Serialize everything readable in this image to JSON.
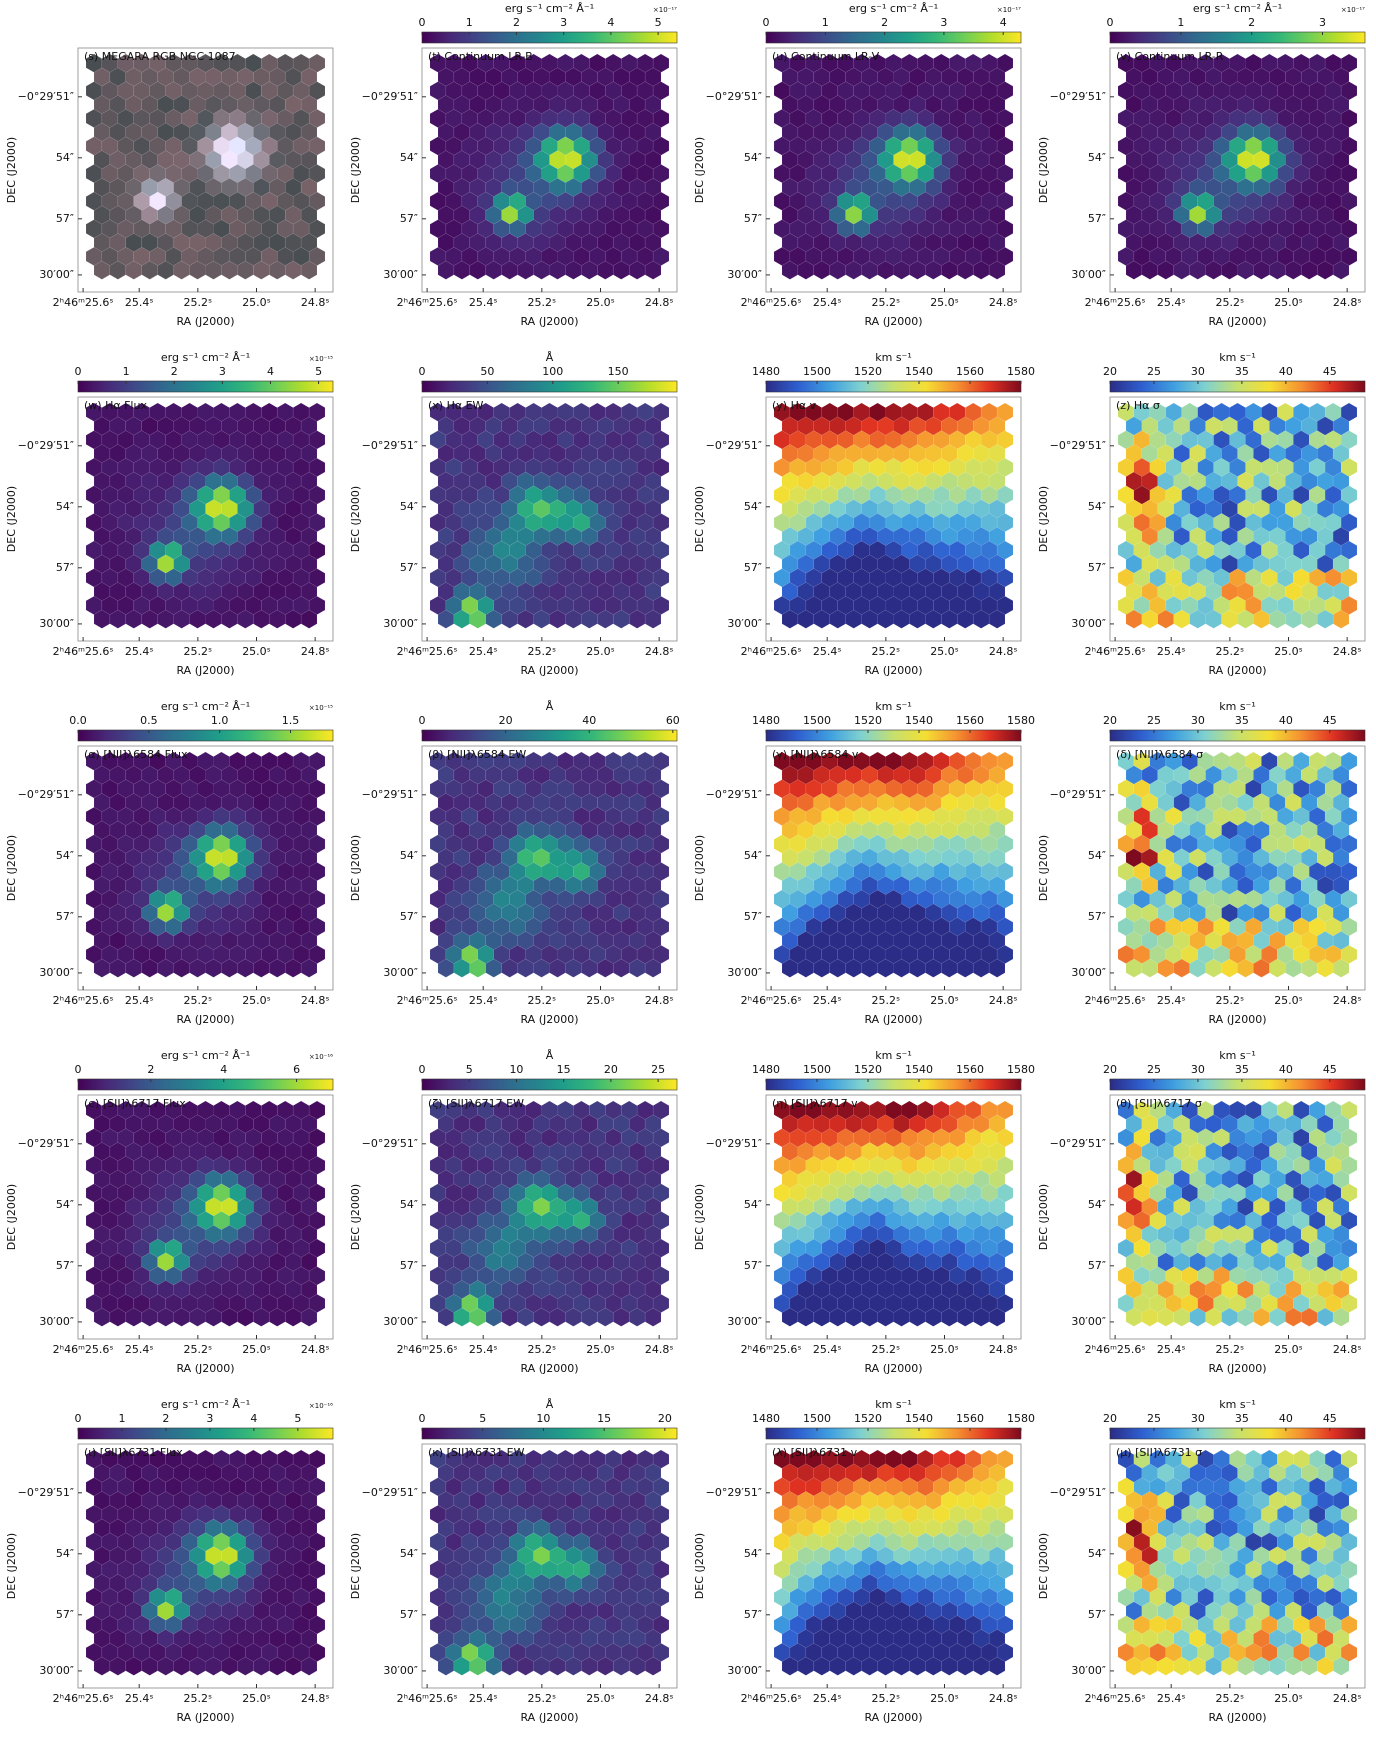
{
  "chart_data": [
    {
      "type": "rgb-map",
      "title": "(s) MEGARA RGB NGC 1087",
      "xlabel": "RA (J2000)",
      "ylabel": "DEC (J2000)",
      "xticks": [
        "2ʰ46ᵐ25.6ˢ",
        "25.4ˢ",
        "25.2ˢ",
        "25.0ˢ",
        "24.8ˢ"
      ],
      "yticks": [
        "−0°29′51″",
        "54″",
        "57″",
        "30′00″"
      ]
    },
    {
      "type": "hex-map",
      "title": "(t) Continuum LR-B",
      "colorbar_label": "erg s⁻¹ cm⁻² Å⁻¹",
      "colorbar_exponent": "×10⁻¹⁷",
      "colorbar_lim": [
        0,
        5.4
      ],
      "colorbar_ticks": [
        0,
        1,
        2,
        3,
        4,
        5
      ],
      "colormap": "viridis",
      "xlabel": "RA (J2000)",
      "ylabel": "DEC (J2000)",
      "xticks": [
        "2ʰ46ᵐ25.6ˢ",
        "25.4ˢ",
        "25.2ˢ",
        "25.0ˢ",
        "24.8ˢ"
      ],
      "yticks": [
        "−0°29′51″",
        "54″",
        "57″",
        "30′00″"
      ]
    },
    {
      "type": "hex-map",
      "title": "(u) Continuum LR-V",
      "colorbar_label": "erg s⁻¹ cm⁻² Å⁻¹",
      "colorbar_exponent": "×10⁻¹⁷",
      "colorbar_lim": [
        0,
        4.3
      ],
      "colorbar_ticks": [
        0,
        1,
        2,
        3,
        4
      ],
      "colormap": "viridis",
      "xlabel": "RA (J2000)",
      "ylabel": "DEC (J2000)",
      "xticks": [
        "2ʰ46ᵐ25.6ˢ",
        "25.4ˢ",
        "25.2ˢ",
        "25.0ˢ",
        "24.8ˢ"
      ],
      "yticks": [
        "−0°29′51″",
        "54″",
        "57″",
        "30′00″"
      ]
    },
    {
      "type": "hex-map",
      "title": "(v) Continuum LR-R",
      "colorbar_label": "erg s⁻¹ cm⁻² Å⁻¹",
      "colorbar_exponent": "×10⁻¹⁷",
      "colorbar_lim": [
        0,
        3.6
      ],
      "colorbar_ticks": [
        0,
        1,
        2,
        3
      ],
      "colormap": "viridis",
      "xlabel": "RA (J2000)",
      "ylabel": "DEC (J2000)",
      "xticks": [
        "2ʰ46ᵐ25.6ˢ",
        "25.4ˢ",
        "25.2ˢ",
        "25.0ˢ",
        "24.8ˢ"
      ],
      "yticks": [
        "−0°29′51″",
        "54″",
        "57″",
        "30′00″"
      ]
    },
    {
      "type": "hex-map",
      "title": "(w) Hα Flux",
      "colorbar_label": "erg s⁻¹ cm⁻² Å⁻¹",
      "colorbar_exponent": "×10⁻¹⁵",
      "colorbar_lim": [
        0,
        5.3
      ],
      "colorbar_ticks": [
        0,
        1,
        2,
        3,
        4,
        5
      ],
      "colormap": "viridis",
      "xlabel": "RA (J2000)",
      "ylabel": "DEC (J2000)",
      "xticks": [
        "2ʰ46ᵐ25.6ˢ",
        "25.4ˢ",
        "25.2ˢ",
        "25.0ˢ",
        "24.8ˢ"
      ],
      "yticks": [
        "−0°29′51″",
        "54″",
        "57″",
        "30′00″"
      ]
    },
    {
      "type": "hex-map",
      "title": "(x) Hα EW",
      "colorbar_label": "Å",
      "colorbar_lim": [
        0,
        195
      ],
      "colorbar_ticks": [
        0,
        50,
        100,
        150
      ],
      "colormap": "viridis",
      "xlabel": "RA (J2000)",
      "ylabel": "DEC (J2000)",
      "xticks": [
        "2ʰ46ᵐ25.6ˢ",
        "25.4ˢ",
        "25.2ˢ",
        "25.0ˢ",
        "24.8ˢ"
      ],
      "yticks": [
        "−0°29′51″",
        "54″",
        "57″",
        "30′00″"
      ]
    },
    {
      "type": "hex-map",
      "title": "(y) Hα v",
      "colorbar_label": "km s⁻¹",
      "colorbar_lim": [
        1480,
        1580
      ],
      "colorbar_ticks": [
        1480,
        1500,
        1520,
        1540,
        1560,
        1580
      ],
      "colormap": "jet",
      "xlabel": "RA (J2000)",
      "ylabel": "DEC (J2000)",
      "xticks": [
        "2ʰ46ᵐ25.6ˢ",
        "25.4ˢ",
        "25.2ˢ",
        "25.0ˢ",
        "24.8ˢ"
      ],
      "yticks": [
        "−0°29′51″",
        "54″",
        "57″",
        "30′00″"
      ]
    },
    {
      "type": "hex-map",
      "title": "(z) Hα σ",
      "colorbar_label": "km s⁻¹",
      "colorbar_lim": [
        20,
        49
      ],
      "colorbar_ticks": [
        20,
        25,
        30,
        35,
        40,
        45
      ],
      "colormap": "jet",
      "xlabel": "RA (J2000)",
      "ylabel": "DEC (J2000)",
      "xticks": [
        "2ʰ46ᵐ25.6ˢ",
        "25.4ˢ",
        "25.2ˢ",
        "25.0ˢ",
        "24.8ˢ"
      ],
      "yticks": [
        "−0°29′51″",
        "54″",
        "57″",
        "30′00″"
      ]
    },
    {
      "type": "hex-map",
      "title": "(α) [NII]λ6584 Flux",
      "colorbar_label": "erg s⁻¹ cm⁻² Å⁻¹",
      "colorbar_exponent": "×10⁻¹⁵",
      "colorbar_lim": [
        0,
        1.8
      ],
      "colorbar_ticks": [
        {
          "value": 0,
          "label": "0.0"
        },
        0.5,
        {
          "value": 1,
          "label": "1.0"
        },
        1.5
      ],
      "colormap": "viridis",
      "xlabel": "RA (J2000)",
      "ylabel": "DEC (J2000)",
      "xticks": [
        "2ʰ46ᵐ25.6ˢ",
        "25.4ˢ",
        "25.2ˢ",
        "25.0ˢ",
        "24.8ˢ"
      ],
      "yticks": [
        "−0°29′51″",
        "54″",
        "57″",
        "30′00″"
      ]
    },
    {
      "type": "hex-map",
      "title": "(β) [NII]λ6584 EW",
      "colorbar_label": "Å",
      "colorbar_lim": [
        0,
        61
      ],
      "colorbar_ticks": [
        0,
        20,
        40,
        60
      ],
      "colormap": "viridis",
      "xlabel": "RA (J2000)",
      "ylabel": "DEC (J2000)",
      "xticks": [
        "2ʰ46ᵐ25.6ˢ",
        "25.4ˢ",
        "25.2ˢ",
        "25.0ˢ",
        "24.8ˢ"
      ],
      "yticks": [
        "−0°29′51″",
        "54″",
        "57″",
        "30′00″"
      ]
    },
    {
      "type": "hex-map",
      "title": "(γ) [NII]λ6584 v",
      "colorbar_label": "km s⁻¹",
      "colorbar_lim": [
        1480,
        1580
      ],
      "colorbar_ticks": [
        1480,
        1500,
        1520,
        1540,
        1560,
        1580
      ],
      "colormap": "jet",
      "xlabel": "RA (J2000)",
      "ylabel": "DEC (J2000)",
      "xticks": [
        "2ʰ46ᵐ25.6ˢ",
        "25.4ˢ",
        "25.2ˢ",
        "25.0ˢ",
        "24.8ˢ"
      ],
      "yticks": [
        "−0°29′51″",
        "54″",
        "57″",
        "30′00″"
      ]
    },
    {
      "type": "hex-map",
      "title": "(δ) [NII]λ6584 σ",
      "colorbar_label": "km s⁻¹",
      "colorbar_lim": [
        20,
        49
      ],
      "colorbar_ticks": [
        20,
        25,
        30,
        35,
        40,
        45
      ],
      "colormap": "jet",
      "xlabel": "RA (J2000)",
      "ylabel": "DEC (J2000)",
      "xticks": [
        "2ʰ46ᵐ25.6ˢ",
        "25.4ˢ",
        "25.2ˢ",
        "25.0ˢ",
        "24.8ˢ"
      ],
      "yticks": [
        "−0°29′51″",
        "54″",
        "57″",
        "30′00″"
      ]
    },
    {
      "type": "hex-map",
      "title": "(ϵ) [SII]λ6717 Flux",
      "colorbar_label": "erg s⁻¹ cm⁻² Å⁻¹",
      "colorbar_exponent": "×10⁻¹⁶",
      "colorbar_lim": [
        0,
        7
      ],
      "colorbar_ticks": [
        0,
        2,
        4,
        6
      ],
      "colormap": "viridis",
      "xlabel": "RA (J2000)",
      "ylabel": "DEC (J2000)",
      "xticks": [
        "2ʰ46ᵐ25.6ˢ",
        "25.4ˢ",
        "25.2ˢ",
        "25.0ˢ",
        "24.8ˢ"
      ],
      "yticks": [
        "−0°29′51″",
        "54″",
        "57″",
        "30′00″"
      ]
    },
    {
      "type": "hex-map",
      "title": "(ζ) [SII]λ6717 EW",
      "colorbar_label": "Å",
      "colorbar_lim": [
        0,
        27
      ],
      "colorbar_ticks": [
        0,
        5,
        10,
        15,
        20,
        25
      ],
      "colormap": "viridis",
      "xlabel": "RA (J2000)",
      "ylabel": "DEC (J2000)",
      "xticks": [
        "2ʰ46ᵐ25.6ˢ",
        "25.4ˢ",
        "25.2ˢ",
        "25.0ˢ",
        "24.8ˢ"
      ],
      "yticks": [
        "−0°29′51″",
        "54″",
        "57″",
        "30′00″"
      ]
    },
    {
      "type": "hex-map",
      "title": "(η) [SII]λ6717 v",
      "colorbar_label": "km s⁻¹",
      "colorbar_lim": [
        1480,
        1580
      ],
      "colorbar_ticks": [
        1480,
        1500,
        1520,
        1540,
        1560,
        1580
      ],
      "colormap": "jet",
      "xlabel": "RA (J2000)",
      "ylabel": "DEC (J2000)",
      "xticks": [
        "2ʰ46ᵐ25.6ˢ",
        "25.4ˢ",
        "25.2ˢ",
        "25.0ˢ",
        "24.8ˢ"
      ],
      "yticks": [
        "−0°29′51″",
        "54″",
        "57″",
        "30′00″"
      ]
    },
    {
      "type": "hex-map",
      "title": "(θ) [SII]λ6717 σ",
      "colorbar_label": "km s⁻¹",
      "colorbar_lim": [
        20,
        49
      ],
      "colorbar_ticks": [
        20,
        25,
        30,
        35,
        40,
        45
      ],
      "colormap": "jet",
      "xlabel": "RA (J2000)",
      "ylabel": "DEC (J2000)",
      "xticks": [
        "2ʰ46ᵐ25.6ˢ",
        "25.4ˢ",
        "25.2ˢ",
        "25.0ˢ",
        "24.8ˢ"
      ],
      "yticks": [
        "−0°29′51″",
        "54″",
        "57″",
        "30′00″"
      ]
    },
    {
      "type": "hex-map",
      "title": "(ι) [SII]λ6731 Flux",
      "colorbar_label": "erg s⁻¹ cm⁻² Å⁻¹",
      "colorbar_exponent": "×10⁻¹⁶",
      "colorbar_lim": [
        0,
        5.8
      ],
      "colorbar_ticks": [
        0,
        1,
        2,
        3,
        4,
        5
      ],
      "colormap": "viridis",
      "xlabel": "RA (J2000)",
      "ylabel": "DEC (J2000)",
      "xticks": [
        "2ʰ46ᵐ25.6ˢ",
        "25.4ˢ",
        "25.2ˢ",
        "25.0ˢ",
        "24.8ˢ"
      ],
      "yticks": [
        "−0°29′51″",
        "54″",
        "57″",
        "30′00″"
      ]
    },
    {
      "type": "hex-map",
      "title": "(κ) [SII]λ6731 EW",
      "colorbar_label": "Å",
      "colorbar_lim": [
        0,
        21
      ],
      "colorbar_ticks": [
        0,
        5,
        10,
        15,
        20
      ],
      "colormap": "viridis",
      "xlabel": "RA (J2000)",
      "ylabel": "DEC (J2000)",
      "xticks": [
        "2ʰ46ᵐ25.6ˢ",
        "25.4ˢ",
        "25.2ˢ",
        "25.0ˢ",
        "24.8ˢ"
      ],
      "yticks": [
        "−0°29′51″",
        "54″",
        "57″",
        "30′00″"
      ]
    },
    {
      "type": "hex-map",
      "title": "(λ) [SII]λ6731 v",
      "colorbar_label": "km s⁻¹",
      "colorbar_lim": [
        1480,
        1580
      ],
      "colorbar_ticks": [
        1480,
        1500,
        1520,
        1540,
        1560,
        1580
      ],
      "colormap": "jet",
      "xlabel": "RA (J2000)",
      "ylabel": "DEC (J2000)",
      "xticks": [
        "2ʰ46ᵐ25.6ˢ",
        "25.4ˢ",
        "25.2ˢ",
        "25.0ˢ",
        "24.8ˢ"
      ],
      "yticks": [
        "−0°29′51″",
        "54″",
        "57″",
        "30′00″"
      ]
    },
    {
      "type": "hex-map",
      "title": "(μ) [SII]λ6731 σ",
      "colorbar_label": "km s⁻¹",
      "colorbar_lim": [
        20,
        49
      ],
      "colorbar_ticks": [
        20,
        25,
        30,
        35,
        40,
        45
      ],
      "colormap": "jet",
      "xlabel": "RA (J2000)",
      "ylabel": "DEC (J2000)",
      "xticks": [
        "2ʰ46ᵐ25.6ˢ",
        "25.4ˢ",
        "25.2ˢ",
        "25.0ˢ",
        "24.8ˢ"
      ],
      "yticks": [
        "−0°29′51″",
        "54″",
        "57″",
        "30′00″"
      ]
    }
  ]
}
